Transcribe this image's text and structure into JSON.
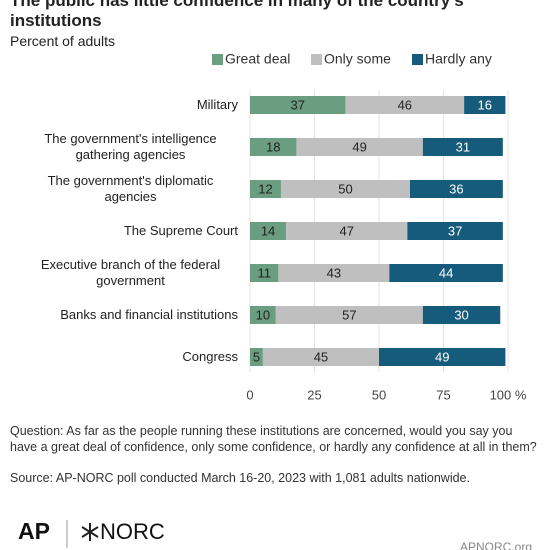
{
  "chart_data": {
    "type": "stacked-bar-horizontal",
    "title": "The public has little confidence in many of the country's institutions",
    "subtitle": "Percent of adults",
    "categories": [
      "Military",
      "The government's intelligence gathering agencies",
      "The government's diplomatic agencies",
      "The Supreme Court",
      "Executive branch of the federal government",
      "Banks and financial institutions",
      "Congress"
    ],
    "series": [
      {
        "name": "Great deal",
        "color": "#6b9e80",
        "values": [
          37,
          18,
          12,
          14,
          11,
          10,
          5
        ]
      },
      {
        "name": "Only some",
        "color": "#bfbfbf",
        "values": [
          46,
          49,
          50,
          47,
          43,
          57,
          45
        ]
      },
      {
        "name": "Hardly any",
        "color": "#175b7c",
        "values": [
          16,
          31,
          36,
          37,
          44,
          30,
          49
        ]
      }
    ],
    "xlim": [
      0,
      100
    ],
    "xticks": [
      0,
      25,
      50,
      75,
      {
        "value": 100,
        "label": "100 %"
      }
    ],
    "grid": true
  },
  "footer": {
    "question": "Question: As far as the people running these institutions are concerned, would you say you have a great deal of confidence, only some confidence, or hardly any confidence at all in them?",
    "source": "Source: AP-NORC poll conducted March 16-20, 2023 with 1,081 adults nationwide.",
    "logo_ap": "AP",
    "logo_norc": "NORC",
    "site": "APNORC.org"
  }
}
